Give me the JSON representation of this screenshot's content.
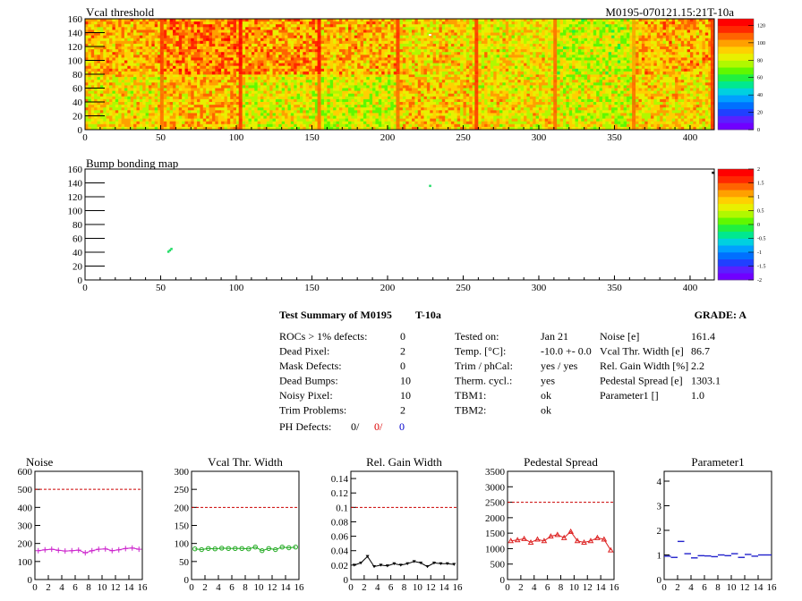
{
  "colors": {
    "noise": "#cc22cc",
    "vcal": "#22aa22",
    "gain": "#000000",
    "pedestal": "#dd2222",
    "param": "#2222cc",
    "threshold_line": "#cc0000"
  },
  "maps": {
    "vcal": {
      "title": "Vcal threshold",
      "id_label": "M0195-070121.15:21T-10a",
      "xticks": [
        "0",
        "50",
        "100",
        "150",
        "200",
        "250",
        "300",
        "350",
        "400"
      ],
      "yticks": [
        "0",
        "20",
        "40",
        "60",
        "80",
        "100",
        "120",
        "140",
        "160"
      ],
      "zticks": [
        "0",
        "20",
        "40",
        "60",
        "80",
        "100",
        "120"
      ]
    },
    "bump": {
      "title": "Bump bonding map",
      "xticks": [
        "0",
        "50",
        "100",
        "150",
        "200",
        "250",
        "300",
        "350",
        "400"
      ],
      "yticks": [
        "0",
        "20",
        "40",
        "60",
        "80",
        "100",
        "120",
        "140",
        "160"
      ],
      "zticks": [
        "-2",
        "-1.5",
        "-1",
        "-0.5",
        "0",
        "0.5",
        "1",
        "1.5",
        "2"
      ]
    }
  },
  "summary": {
    "title": "Test Summary of M0195",
    "tag": "T-10a",
    "grade_label": "GRADE:  A",
    "left": [
      {
        "label": "ROCs > 1% defects:",
        "value": "0"
      },
      {
        "label": "Dead Pixel:",
        "value": "2"
      },
      {
        "label": "Mask Defects:",
        "value": "0"
      },
      {
        "label": "Dead Bumps:",
        "value": "10"
      },
      {
        "label": "Noisy Pixel:",
        "value": "10"
      },
      {
        "label": "Trim Problems:",
        "value": "2"
      }
    ],
    "ph_label": "PH Defects:",
    "ph_values": [
      "0/",
      "0/",
      "0"
    ],
    "middle": [
      {
        "label": "Tested on:",
        "value": "Jan 21"
      },
      {
        "label": "Temp. [°C]:",
        "value": "-10.0 +- 0.0"
      },
      {
        "label": "Trim / phCal:",
        "value": "yes / yes"
      },
      {
        "label": "Therm. cycl.:",
        "value": "yes"
      },
      {
        "label": "TBM1:",
        "value": "ok"
      },
      {
        "label": "TBM2:",
        "value": "ok"
      }
    ],
    "right": [
      {
        "label": "Noise [e]",
        "value": "161.4"
      },
      {
        "label": "Vcal Thr. Width [e]",
        "value": "86.7"
      },
      {
        "label": "Rel. Gain Width [%]",
        "value": "2.2"
      },
      {
        "label": "Pedestal Spread [e]",
        "value": "1303.1"
      },
      {
        "label": "Parameter1 []",
        "value": "1.0"
      }
    ]
  },
  "chart_data": [
    {
      "type": "heatmap",
      "title": "Vcal threshold",
      "xlim": [
        0,
        416
      ],
      "ylim": [
        0,
        160
      ],
      "zlim": [
        0,
        128
      ],
      "description_values": "16 ROC blocks (8 x 2), per-ROC mean threshold (colour)",
      "roc_means": [
        [
          88,
          95,
          84,
          82,
          92,
          88,
          84,
          90
        ],
        [
          96,
          104,
          100,
          96,
          90,
          88,
          80,
          96
        ]
      ]
    },
    {
      "type": "scatter",
      "title": "Bump bonding map",
      "xlim": [
        0,
        416
      ],
      "ylim": [
        0,
        160
      ],
      "zlim": [
        -2,
        2
      ],
      "x": [
        55,
        56,
        57,
        228,
        415
      ],
      "y": [
        41,
        43,
        45,
        136,
        155
      ]
    },
    {
      "type": "line",
      "title": "Noise",
      "x": [
        0,
        1,
        2,
        3,
        4,
        5,
        6,
        7,
        8,
        9,
        10,
        11,
        12,
        13,
        14,
        15
      ],
      "y": [
        160,
        165,
        168,
        162,
        158,
        160,
        163,
        148,
        160,
        168,
        170,
        160,
        165,
        172,
        175,
        168
      ],
      "xlim": [
        0,
        16
      ],
      "ylim": [
        0,
        600
      ],
      "threshold": 500,
      "yticks": [
        "0",
        "100",
        "200",
        "300",
        "400",
        "500",
        "600"
      ],
      "xticks": [
        "0",
        "2",
        "4",
        "6",
        "8",
        "10",
        "12",
        "14",
        "16"
      ]
    },
    {
      "type": "line",
      "title": "Vcal Thr. Width",
      "x": [
        0,
        1,
        2,
        3,
        4,
        5,
        6,
        7,
        8,
        9,
        10,
        11,
        12,
        13,
        14,
        15
      ],
      "y": [
        85,
        83,
        86,
        85,
        87,
        86,
        86,
        86,
        85,
        90,
        80,
        86,
        83,
        90,
        88,
        90
      ],
      "xlim": [
        0,
        16
      ],
      "ylim": [
        0,
        300
      ],
      "threshold": 200,
      "yticks": [
        "0",
        "50",
        "100",
        "150",
        "200",
        "250",
        "300"
      ],
      "xticks": [
        "0",
        "2",
        "4",
        "6",
        "8",
        "10",
        "12",
        "14",
        "16"
      ]
    },
    {
      "type": "line",
      "title": "Rel. Gain Width",
      "x": [
        0,
        1,
        2,
        3,
        4,
        5,
        6,
        7,
        8,
        9,
        10,
        11,
        12,
        13,
        14,
        15
      ],
      "y": [
        0.02,
        0.023,
        0.032,
        0.018,
        0.02,
        0.019,
        0.022,
        0.02,
        0.022,
        0.025,
        0.023,
        0.018,
        0.023,
        0.022,
        0.022,
        0.021
      ],
      "xlim": [
        0,
        16
      ],
      "ylim": [
        0,
        0.15
      ],
      "threshold": 0.1,
      "yticks": [
        "0",
        "0.02",
        "0.04",
        "0.06",
        "0.08",
        "0.1",
        "0.12",
        "0.14"
      ],
      "xticks": [
        "0",
        "2",
        "4",
        "6",
        "8",
        "10",
        "12",
        "14",
        "16"
      ]
    },
    {
      "type": "line",
      "title": "Pedestal Spread",
      "x": [
        0,
        1,
        2,
        3,
        4,
        5,
        6,
        7,
        8,
        9,
        10,
        11,
        12,
        13,
        14,
        15
      ],
      "y": [
        1250,
        1280,
        1320,
        1200,
        1300,
        1250,
        1400,
        1450,
        1350,
        1550,
        1250,
        1200,
        1250,
        1350,
        1300,
        950
      ],
      "xlim": [
        0,
        16
      ],
      "ylim": [
        0,
        3500
      ],
      "threshold": 2500,
      "yticks": [
        "0",
        "500",
        "1000",
        "1500",
        "2000",
        "2500",
        "3000",
        "3500"
      ],
      "xticks": [
        "0",
        "2",
        "4",
        "6",
        "8",
        "10",
        "12",
        "14",
        "16"
      ]
    },
    {
      "type": "line",
      "title": "Parameter1",
      "x": [
        0,
        1,
        2,
        3,
        4,
        5,
        6,
        7,
        8,
        9,
        10,
        11,
        12,
        13,
        14,
        15
      ],
      "y": [
        0.95,
        0.9,
        1.55,
        1.05,
        0.88,
        0.97,
        0.96,
        0.93,
        1.0,
        0.97,
        1.05,
        0.9,
        1.02,
        0.95,
        1.0,
        1.0
      ],
      "xlim": [
        0,
        16
      ],
      "ylim": [
        0,
        4.4
      ],
      "yticks": [
        "0",
        "1",
        "2",
        "3",
        "4"
      ],
      "xticks": [
        "0",
        "2",
        "4",
        "6",
        "8",
        "10",
        "12",
        "14",
        "16"
      ]
    }
  ]
}
